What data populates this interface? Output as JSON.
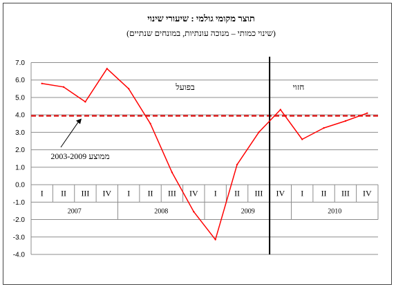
{
  "chart_data": {
    "type": "line",
    "title": "תוצר מקומי גולמי : שיעורי שינוי",
    "subtitle": "(שינוי כמותי – מנוכה עונתיות, במונחים שנתיים)",
    "ylim": [
      -4.0,
      7.0
    ],
    "y_ticks": [
      "7.0",
      "6.0",
      "5.0",
      "4.0",
      "3.0",
      "2.0",
      "1.0",
      "0.0",
      "-1.0",
      "-2.0",
      "-3.0",
      "-4.0"
    ],
    "y_tick_values": [
      7,
      6,
      5,
      4,
      3,
      2,
      1,
      0,
      -1,
      -2,
      -3,
      -4
    ],
    "grid": true,
    "categories": [
      "I",
      "II",
      "III",
      "IV",
      "I",
      "II",
      "III",
      "IV",
      "I",
      "II",
      "III",
      "IV",
      "I",
      "II",
      "III",
      "IV"
    ],
    "years": [
      "2007",
      "2008",
      "2009",
      "2010"
    ],
    "series": [
      {
        "values": [
          5.8,
          5.6,
          4.75,
          6.65,
          5.5,
          3.5,
          0.7,
          -1.55,
          -3.15,
          1.15,
          3.0,
          4.3,
          2.6,
          3.25,
          3.65,
          4.1
        ],
        "color": "#ff0000"
      }
    ],
    "average_line": {
      "label": "ממוצע 2003-2009",
      "value": 3.95,
      "color": "#e02020"
    },
    "divider_after_index": 10,
    "region_labels": {
      "actual": "בפועל",
      "forecast": "חזוי"
    }
  }
}
